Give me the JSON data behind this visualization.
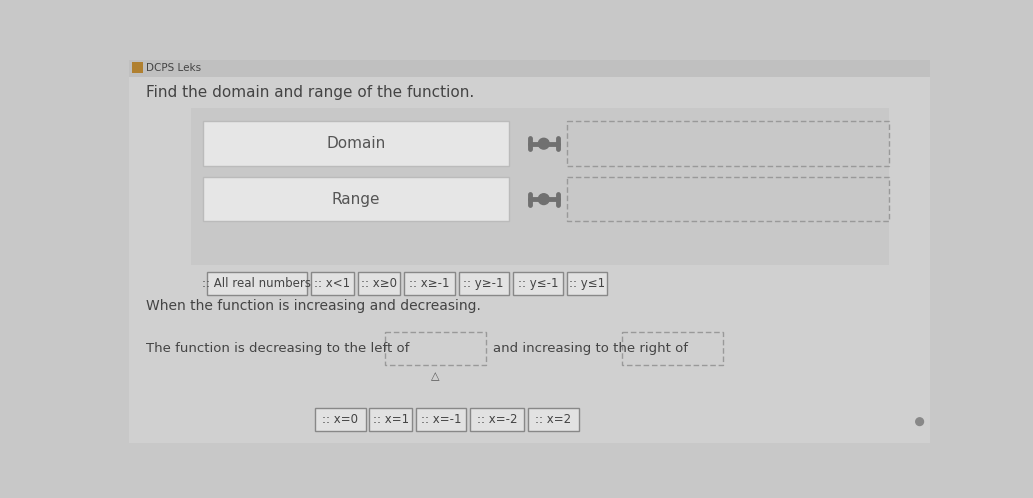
{
  "title": "Find the domain and range of the function.",
  "header": "DCPS Leks",
  "bg_color": "#c8c8c8",
  "content_bg": "#d6d6d6",
  "section_bg": "#cbcbcb",
  "box_bg": "#ebebeb",
  "box_border": "#aaaaaa",
  "dashed_border": "#999999",
  "text_color": "#444444",
  "drag_color": "#707070",
  "domain_label": "Domain",
  "range_label": "Range",
  "answer_chips_row1": [
    ":: All real numbers",
    ":: x<1",
    ":: x≥0",
    ":: x≥-1",
    ":: y≥-1",
    ":: y≤-1",
    ":: y≤1"
  ],
  "chip_widths_row1": [
    130,
    55,
    55,
    65,
    65,
    65,
    52
  ],
  "section2_title": "When the function is increasing and decreasing.",
  "sentence": "The function is decreasing to the left of",
  "sentence2": "and increasing to the right of",
  "answer_chips_row2": [
    ":: x=0",
    ":: x=1",
    ":: x=-1",
    ":: x=-2",
    ":: x=2"
  ],
  "chip_widths_row2": [
    65,
    55,
    65,
    70,
    65
  ]
}
